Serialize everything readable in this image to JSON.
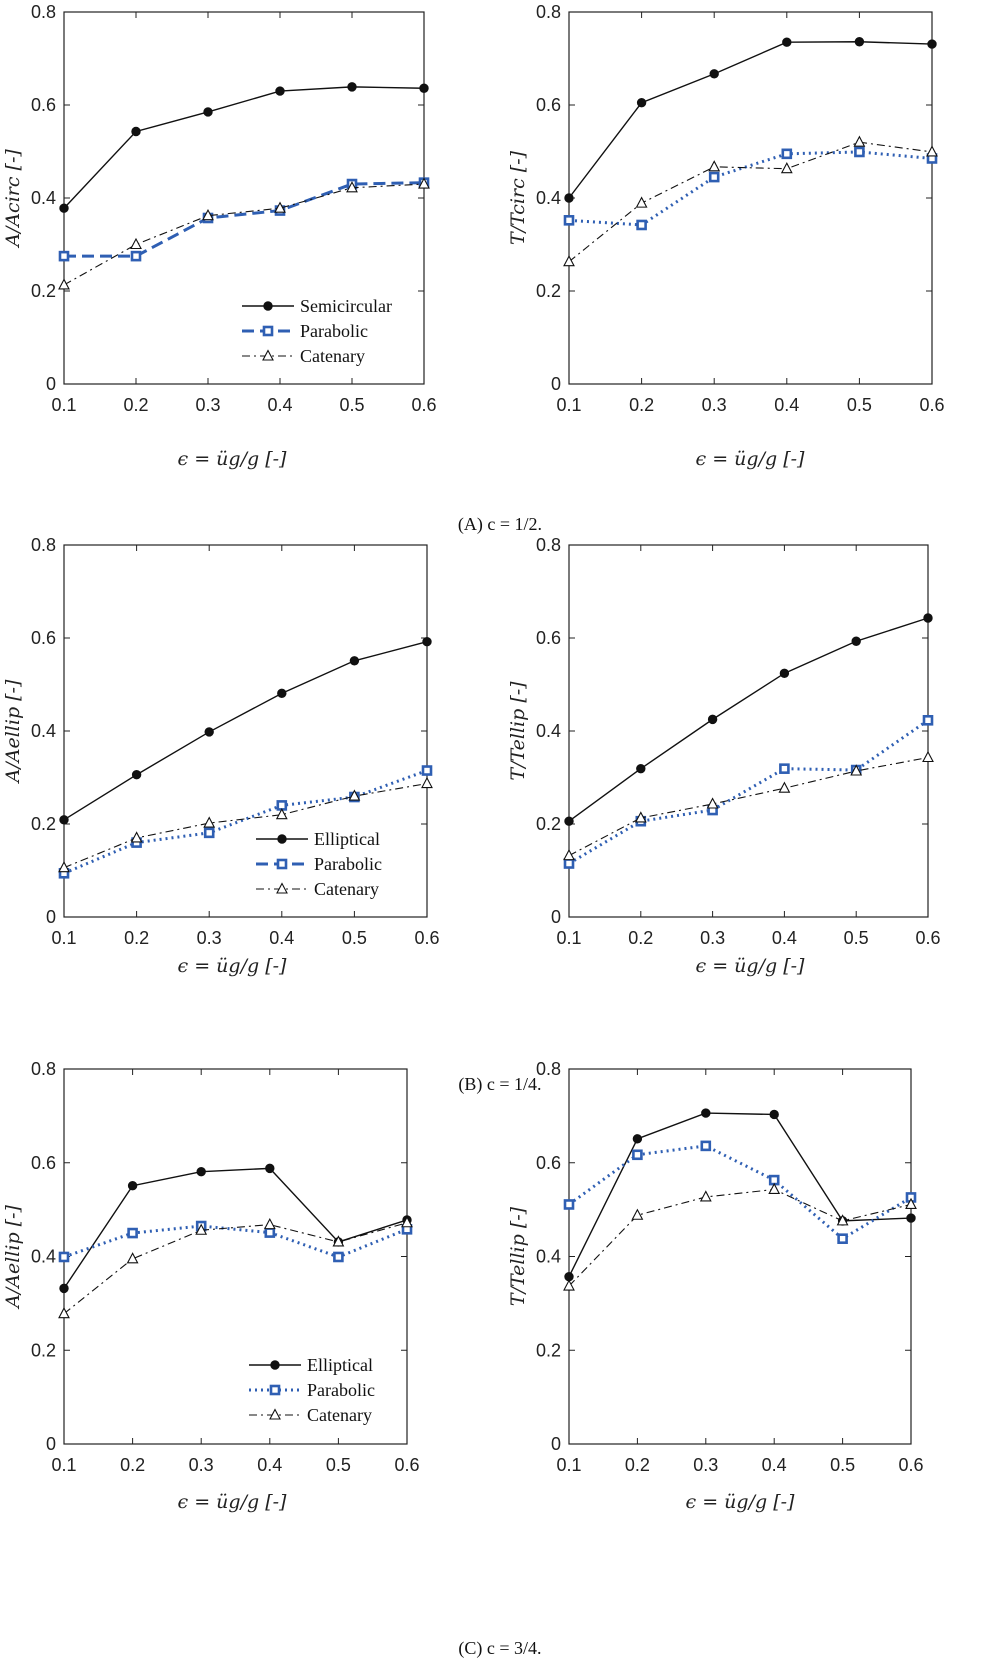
{
  "colors": {
    "black": "#111111",
    "blue": "#2f5fb3"
  },
  "captions": [
    "(A) c = 1/2.",
    "(B) c = 1/4.",
    "(C) c = 3/4."
  ],
  "chart_data": [
    {
      "type": "line",
      "id": "A-left",
      "xlabel": "ϵ = üg/g [-]",
      "ylabel": "A/Acirc [-]",
      "x": [
        0.1,
        0.2,
        0.3,
        0.4,
        0.5,
        0.6
      ],
      "xlim": [
        0.1,
        0.6
      ],
      "ylim": [
        0,
        0.8
      ],
      "xticks": [
        "0.1",
        "0.2",
        "0.3",
        "0.4",
        "0.5",
        "0.6"
      ],
      "yticks": [
        "0",
        "0.2",
        "0.4",
        "0.6",
        "0.8"
      ],
      "legend": "bottom-right",
      "series": [
        {
          "name": "Semicircular",
          "style": "solid-circle",
          "values": [
            0.378,
            0.543,
            0.585,
            0.63,
            0.639,
            0.636
          ]
        },
        {
          "name": "Parabolic",
          "style": "dash-square",
          "values": [
            0.275,
            0.275,
            0.357,
            0.373,
            0.43,
            0.433
          ]
        },
        {
          "name": "Catenary",
          "style": "dashdot-triangle",
          "values": [
            0.213,
            0.3,
            0.362,
            0.378,
            0.422,
            0.43
          ]
        }
      ]
    },
    {
      "type": "line",
      "id": "A-right",
      "xlabel": "ϵ = üg/g [-]",
      "ylabel": "T/Tcirc [-]",
      "x": [
        0.1,
        0.2,
        0.3,
        0.4,
        0.5,
        0.6
      ],
      "xlim": [
        0.1,
        0.6
      ],
      "ylim": [
        0,
        0.8
      ],
      "xticks": [
        "0.1",
        "0.2",
        "0.3",
        "0.4",
        "0.5",
        "0.6"
      ],
      "yticks": [
        "0",
        "0.2",
        "0.4",
        "0.6",
        "0.8"
      ],
      "series": [
        {
          "name": "Semicircular",
          "style": "solid-circle",
          "values": [
            0.4,
            0.605,
            0.667,
            0.735,
            0.736,
            0.731
          ]
        },
        {
          "name": "Parabolic",
          "style": "dot-square",
          "values": [
            0.352,
            0.342,
            0.445,
            0.495,
            0.499,
            0.485
          ]
        },
        {
          "name": "Catenary",
          "style": "dashdot-triangle",
          "values": [
            0.263,
            0.389,
            0.467,
            0.463,
            0.52,
            0.499
          ]
        }
      ]
    },
    {
      "type": "line",
      "id": "B-left",
      "xlabel": "ϵ = üg/g [-]",
      "ylabel": "A/Aellip [-]",
      "x": [
        0.1,
        0.2,
        0.3,
        0.4,
        0.5,
        0.6
      ],
      "xlim": [
        0.1,
        0.6
      ],
      "ylim": [
        0,
        0.8
      ],
      "xticks": [
        "0.1",
        "0.2",
        "0.3",
        "0.4",
        "0.5",
        "0.6"
      ],
      "yticks": [
        "0",
        "0.2",
        "0.4",
        "0.6",
        "0.8"
      ],
      "legend": "bottom-right",
      "series": [
        {
          "name": "Elliptical",
          "style": "solid-circle",
          "values": [
            0.209,
            0.306,
            0.398,
            0.481,
            0.551,
            0.592
          ]
        },
        {
          "name": "Parabolic",
          "style": "dot-square",
          "legend_style": "dash-square",
          "values": [
            0.094,
            0.16,
            0.181,
            0.24,
            0.258,
            0.315
          ]
        },
        {
          "name": "Catenary",
          "style": "dashdot-triangle",
          "values": [
            0.106,
            0.17,
            0.202,
            0.22,
            0.26,
            0.287
          ]
        }
      ]
    },
    {
      "type": "line",
      "id": "B-right",
      "xlabel": "ϵ = üg/g [-]",
      "ylabel": "T/Tellip [-]",
      "x": [
        0.1,
        0.2,
        0.3,
        0.4,
        0.5,
        0.6
      ],
      "xlim": [
        0.1,
        0.6
      ],
      "ylim": [
        0,
        0.8
      ],
      "xticks": [
        "0.1",
        "0.2",
        "0.3",
        "0.4",
        "0.5",
        "0.6"
      ],
      "yticks": [
        "0",
        "0.2",
        "0.4",
        "0.6",
        "0.8"
      ],
      "series": [
        {
          "name": "Elliptical",
          "style": "solid-circle",
          "values": [
            0.206,
            0.319,
            0.425,
            0.524,
            0.593,
            0.643
          ]
        },
        {
          "name": "Parabolic",
          "style": "dot-square",
          "values": [
            0.115,
            0.206,
            0.23,
            0.319,
            0.316,
            0.423
          ]
        },
        {
          "name": "Catenary",
          "style": "dashdot-triangle",
          "values": [
            0.132,
            0.213,
            0.243,
            0.277,
            0.314,
            0.343
          ]
        }
      ]
    },
    {
      "type": "line",
      "id": "C-left",
      "xlabel": "ϵ = üg/g [-]",
      "ylabel": "A/Aellip [-]",
      "x": [
        0.1,
        0.2,
        0.3,
        0.4,
        0.5,
        0.6
      ],
      "xlim": [
        0.1,
        0.6
      ],
      "ylim": [
        0,
        0.8
      ],
      "xticks": [
        "0.1",
        "0.2",
        "0.3",
        "0.4",
        "0.5",
        "0.6"
      ],
      "yticks": [
        "0",
        "0.2",
        "0.4",
        "0.6",
        "0.8"
      ],
      "legend": "bottom-right",
      "series": [
        {
          "name": "Elliptical",
          "style": "solid-circle",
          "values": [
            0.332,
            0.551,
            0.581,
            0.588,
            0.431,
            0.478
          ]
        },
        {
          "name": "Parabolic",
          "style": "dot-square",
          "values": [
            0.399,
            0.45,
            0.465,
            0.451,
            0.399,
            0.458
          ]
        },
        {
          "name": "Catenary",
          "style": "dashdot-triangle",
          "values": [
            0.278,
            0.395,
            0.456,
            0.468,
            0.431,
            0.472
          ]
        }
      ]
    },
    {
      "type": "line",
      "id": "C-right",
      "xlabel": "ϵ = üg/g [-]",
      "ylabel": "T/Tellip [-]",
      "x": [
        0.1,
        0.2,
        0.3,
        0.4,
        0.5,
        0.6
      ],
      "xlim": [
        0.1,
        0.6
      ],
      "ylim": [
        0,
        0.8
      ],
      "xticks": [
        "0.1",
        "0.2",
        "0.3",
        "0.4",
        "0.5",
        "0.6"
      ],
      "yticks": [
        "0",
        "0.2",
        "0.4",
        "0.6",
        "0.8"
      ],
      "series": [
        {
          "name": "Elliptical",
          "style": "solid-circle",
          "values": [
            0.357,
            0.651,
            0.706,
            0.703,
            0.476,
            0.482
          ]
        },
        {
          "name": "Parabolic",
          "style": "dot-square",
          "values": [
            0.511,
            0.617,
            0.636,
            0.563,
            0.438,
            0.526
          ]
        },
        {
          "name": "Catenary",
          "style": "dashdot-triangle",
          "values": [
            0.337,
            0.488,
            0.527,
            0.543,
            0.476,
            0.511
          ]
        }
      ]
    }
  ]
}
